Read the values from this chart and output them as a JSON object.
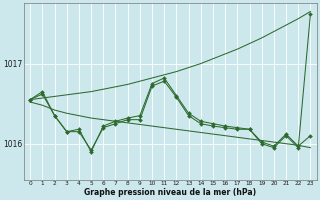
{
  "bg_color": "#cce8ed",
  "grid_color": "#ffffff",
  "line_color": "#2d6a2d",
  "xlabel": "Graphe pression niveau de la mer (hPa)",
  "xlim": [
    -0.5,
    23.5
  ],
  "ylim": [
    1015.55,
    1017.75
  ],
  "yticks": [
    1016,
    1017
  ],
  "xticks": [
    0,
    1,
    2,
    3,
    4,
    5,
    6,
    7,
    8,
    9,
    10,
    11,
    12,
    13,
    14,
    15,
    16,
    17,
    18,
    19,
    20,
    21,
    22,
    23
  ],
  "s_trend": [
    1016.55,
    1016.57,
    1016.59,
    1016.61,
    1016.63,
    1016.65,
    1016.68,
    1016.71,
    1016.74,
    1016.78,
    1016.82,
    1016.86,
    1016.9,
    1016.95,
    1017.0,
    1017.06,
    1017.12,
    1017.18,
    1017.25,
    1017.32,
    1017.4,
    1017.48,
    1017.56,
    1017.65
  ],
  "s_jagged": [
    1016.55,
    1016.65,
    1016.35,
    1016.15,
    1016.18,
    1015.9,
    1016.22,
    1016.28,
    1016.32,
    1016.35,
    1016.75,
    1016.82,
    1016.6,
    1016.38,
    1016.28,
    1016.25,
    1016.22,
    1016.2,
    1016.18,
    1016.02,
    1015.97,
    1016.12,
    1015.97,
    1016.1
  ],
  "s_flat": [
    1016.52,
    1016.48,
    1016.42,
    1016.38,
    1016.35,
    1016.32,
    1016.3,
    1016.28,
    1016.26,
    1016.24,
    1016.22,
    1016.2,
    1016.18,
    1016.16,
    1016.14,
    1016.12,
    1016.1,
    1016.08,
    1016.06,
    1016.04,
    1016.02,
    1016.0,
    1015.98,
    1015.95
  ],
  "s_jagged2": [
    1016.55,
    1016.62,
    1016.35,
    1016.15,
    1016.15,
    1015.92,
    1016.2,
    1016.25,
    1016.3,
    1016.3,
    1016.72,
    1016.78,
    1016.58,
    1016.35,
    1016.25,
    1016.22,
    1016.2,
    1016.18,
    1016.18,
    1016.0,
    1015.95,
    1016.1,
    1015.95,
    1017.62
  ]
}
